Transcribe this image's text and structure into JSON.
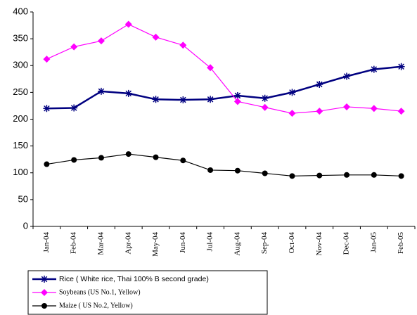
{
  "chart_data": {
    "type": "line",
    "categories": [
      "Jan-04",
      "Feb-04",
      "Mar-04",
      "Apr-04",
      "May-04",
      "Jun-04",
      "Jul-04",
      "Aug-04",
      "Sep-04",
      "Oct-04",
      "Nov-04",
      "Dec-04",
      "Jan-05",
      "Feb-05"
    ],
    "series": [
      {
        "name": "Rice ( White rice, Thai 100% B second grade)",
        "color": "#000080",
        "marker": "star",
        "values": [
          220,
          221,
          252,
          248,
          237,
          236,
          237,
          244,
          239,
          250,
          265,
          280,
          293,
          298
        ]
      },
      {
        "name": "Soybeans (US No.1, Yellow)",
        "color": "#ff00ff",
        "marker": "diamond",
        "values": [
          312,
          335,
          346,
          377,
          353,
          338,
          296,
          233,
          222,
          211,
          215,
          223,
          220,
          215
        ]
      },
      {
        "name": "Maize ( US No.2, Yellow)",
        "color": "#000000",
        "marker": "circle",
        "values": [
          116,
          124,
          128,
          135,
          129,
          123,
          105,
          104,
          99,
          94,
          95,
          96,
          96,
          94
        ]
      }
    ],
    "ylim": [
      0,
      400
    ],
    "yticks": [
      0,
      50,
      100,
      150,
      200,
      250,
      300,
      350,
      400
    ],
    "grid": false,
    "legend": "bottom"
  }
}
